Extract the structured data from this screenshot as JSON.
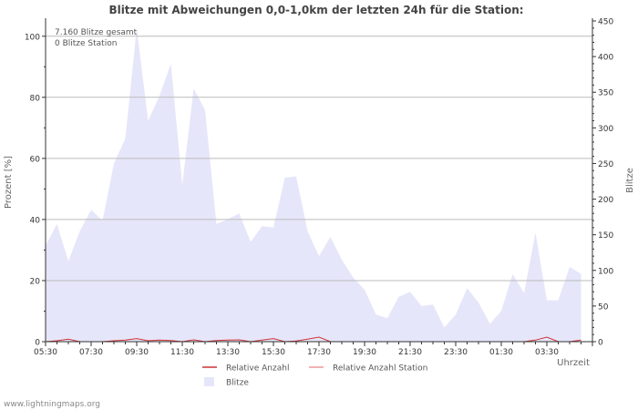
{
  "chart_data": {
    "type": "area",
    "title": "Blitze mit Abweichungen 0,0-1,0km der letzten 24h für die Station:",
    "ylabel_left": "Prozent   [%]",
    "ylabel_right": "Blitze",
    "xlabel": "Uhrzeit",
    "ylim_left": [
      0,
      105
    ],
    "ylim_right": [
      0,
      450
    ],
    "left_ticks": [
      0,
      20,
      40,
      60,
      80,
      100
    ],
    "right_ticks": [
      0,
      50,
      100,
      150,
      200,
      250,
      300,
      350,
      400,
      450
    ],
    "x_tick_labels": [
      "05:30",
      "07:30",
      "09:30",
      "11:30",
      "13:30",
      "15:30",
      "17:30",
      "19:30",
      "21:30",
      "23:30",
      "01:30",
      "03:30"
    ],
    "annotations": [
      "7.160 Blitze gesamt",
      "0 Blitze Station"
    ],
    "legend": [
      {
        "label": "Relative Anzahl",
        "color": "#cc3333",
        "kind": "line"
      },
      {
        "label": "Relative Anzahl Station",
        "color": "#ee9999",
        "kind": "line"
      },
      {
        "label": "Blitze",
        "color": "#e6e6fa",
        "kind": "area"
      }
    ],
    "grid": true,
    "x_start_hour": 5.5,
    "series": [
      {
        "name": "Blitze",
        "axis": "right",
        "x_hours": [
          5.5,
          6.0,
          6.5,
          7.0,
          7.5,
          8.0,
          8.5,
          9.0,
          9.5,
          10.0,
          10.5,
          11.0,
          11.5,
          12.0,
          12.5,
          13.0,
          13.5,
          14.0,
          14.5,
          15.0,
          15.5,
          16.0,
          16.5,
          17.0,
          17.5,
          18.0,
          18.5,
          19.0,
          19.5,
          20.0,
          20.5,
          21.0,
          21.5,
          22.0,
          22.5,
          23.0,
          23.5,
          24.0,
          24.5,
          25.0,
          25.5,
          26.0,
          26.5,
          27.0,
          27.5,
          28.0,
          28.5,
          29.0
        ],
        "values": [
          135,
          165,
          113,
          155,
          185,
          170,
          250,
          285,
          440,
          310,
          345,
          390,
          220,
          355,
          325,
          165,
          172,
          180,
          140,
          162,
          160,
          230,
          232,
          155,
          120,
          147,
          115,
          90,
          73,
          38,
          33,
          63,
          70,
          50,
          52,
          20,
          38,
          75,
          55,
          25,
          43,
          95,
          68,
          153,
          58,
          58,
          105,
          95
        ]
      },
      {
        "name": "Relative Anzahl",
        "axis": "left",
        "x_hours": [
          5.5,
          6.0,
          6.5,
          7.0,
          7.5,
          8.0,
          8.5,
          9.0,
          9.5,
          10.0,
          10.5,
          11.0,
          11.5,
          12.0,
          12.5,
          13.0,
          13.5,
          14.0,
          14.5,
          15.0,
          15.5,
          16.0,
          16.5,
          17.0,
          17.5,
          18.0,
          18.5,
          19.0,
          19.5,
          20.0,
          20.5,
          21.0,
          21.5,
          22.0,
          22.5,
          23.0,
          23.5,
          24.0,
          24.5,
          25.0,
          25.5,
          26.0,
          26.5,
          27.0,
          27.5,
          28.0,
          28.5,
          29.0
        ],
        "values": [
          0,
          0.3,
          0.8,
          0,
          0,
          0,
          0.3,
          0.5,
          1.0,
          0.3,
          0.5,
          0.4,
          0,
          0.6,
          0,
          0.4,
          0.5,
          0.6,
          0,
          0.5,
          1.0,
          0,
          0.2,
          0.8,
          1.5,
          0,
          0,
          0,
          0,
          0,
          0,
          0,
          0,
          0,
          0,
          0,
          0,
          0,
          0,
          0,
          0,
          0,
          0,
          0.5,
          1.5,
          0,
          0,
          0.5
        ]
      },
      {
        "name": "Relative Anzahl Station",
        "axis": "left",
        "x_hours": [
          5.5,
          29.0
        ],
        "values": [
          0,
          0
        ]
      }
    ]
  },
  "footer": {
    "source": "www.lightningmaps.org"
  }
}
